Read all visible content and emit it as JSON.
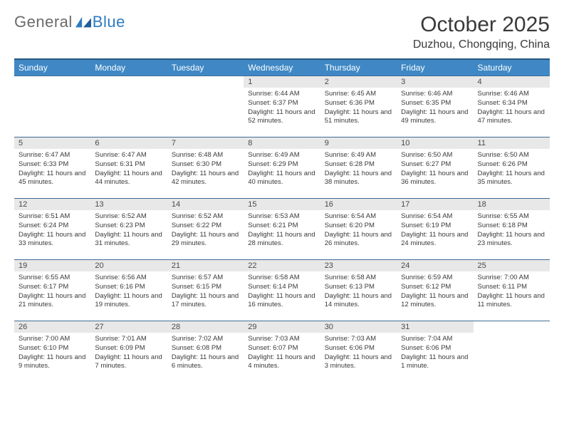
{
  "brand": {
    "word1": "General",
    "word2": "Blue"
  },
  "title": "October 2025",
  "location": "Duzhou, Chongqing, China",
  "colors": {
    "header_bg": "#3f88c5",
    "header_border_top": "#2a5880",
    "row_divider": "#3f6b94",
    "daynum_bg": "#e8e8e8",
    "text": "#3a3a3a",
    "brand_gray": "#6b6b6b",
    "brand_blue": "#2d7bc0"
  },
  "fonts": {
    "title_size_pt": 22,
    "location_size_pt": 12,
    "header_size_pt": 9,
    "daynum_size_pt": 8,
    "body_size_pt": 7
  },
  "day_headers": [
    "Sunday",
    "Monday",
    "Tuesday",
    "Wednesday",
    "Thursday",
    "Friday",
    "Saturday"
  ],
  "weeks": [
    [
      {
        "num": "",
        "sunrise": "",
        "sunset": "",
        "daylight": ""
      },
      {
        "num": "",
        "sunrise": "",
        "sunset": "",
        "daylight": ""
      },
      {
        "num": "",
        "sunrise": "",
        "sunset": "",
        "daylight": ""
      },
      {
        "num": "1",
        "sunrise": "Sunrise: 6:44 AM",
        "sunset": "Sunset: 6:37 PM",
        "daylight": "Daylight: 11 hours and 52 minutes."
      },
      {
        "num": "2",
        "sunrise": "Sunrise: 6:45 AM",
        "sunset": "Sunset: 6:36 PM",
        "daylight": "Daylight: 11 hours and 51 minutes."
      },
      {
        "num": "3",
        "sunrise": "Sunrise: 6:46 AM",
        "sunset": "Sunset: 6:35 PM",
        "daylight": "Daylight: 11 hours and 49 minutes."
      },
      {
        "num": "4",
        "sunrise": "Sunrise: 6:46 AM",
        "sunset": "Sunset: 6:34 PM",
        "daylight": "Daylight: 11 hours and 47 minutes."
      }
    ],
    [
      {
        "num": "5",
        "sunrise": "Sunrise: 6:47 AM",
        "sunset": "Sunset: 6:33 PM",
        "daylight": "Daylight: 11 hours and 45 minutes."
      },
      {
        "num": "6",
        "sunrise": "Sunrise: 6:47 AM",
        "sunset": "Sunset: 6:31 PM",
        "daylight": "Daylight: 11 hours and 44 minutes."
      },
      {
        "num": "7",
        "sunrise": "Sunrise: 6:48 AM",
        "sunset": "Sunset: 6:30 PM",
        "daylight": "Daylight: 11 hours and 42 minutes."
      },
      {
        "num": "8",
        "sunrise": "Sunrise: 6:49 AM",
        "sunset": "Sunset: 6:29 PM",
        "daylight": "Daylight: 11 hours and 40 minutes."
      },
      {
        "num": "9",
        "sunrise": "Sunrise: 6:49 AM",
        "sunset": "Sunset: 6:28 PM",
        "daylight": "Daylight: 11 hours and 38 minutes."
      },
      {
        "num": "10",
        "sunrise": "Sunrise: 6:50 AM",
        "sunset": "Sunset: 6:27 PM",
        "daylight": "Daylight: 11 hours and 36 minutes."
      },
      {
        "num": "11",
        "sunrise": "Sunrise: 6:50 AM",
        "sunset": "Sunset: 6:26 PM",
        "daylight": "Daylight: 11 hours and 35 minutes."
      }
    ],
    [
      {
        "num": "12",
        "sunrise": "Sunrise: 6:51 AM",
        "sunset": "Sunset: 6:24 PM",
        "daylight": "Daylight: 11 hours and 33 minutes."
      },
      {
        "num": "13",
        "sunrise": "Sunrise: 6:52 AM",
        "sunset": "Sunset: 6:23 PM",
        "daylight": "Daylight: 11 hours and 31 minutes."
      },
      {
        "num": "14",
        "sunrise": "Sunrise: 6:52 AM",
        "sunset": "Sunset: 6:22 PM",
        "daylight": "Daylight: 11 hours and 29 minutes."
      },
      {
        "num": "15",
        "sunrise": "Sunrise: 6:53 AM",
        "sunset": "Sunset: 6:21 PM",
        "daylight": "Daylight: 11 hours and 28 minutes."
      },
      {
        "num": "16",
        "sunrise": "Sunrise: 6:54 AM",
        "sunset": "Sunset: 6:20 PM",
        "daylight": "Daylight: 11 hours and 26 minutes."
      },
      {
        "num": "17",
        "sunrise": "Sunrise: 6:54 AM",
        "sunset": "Sunset: 6:19 PM",
        "daylight": "Daylight: 11 hours and 24 minutes."
      },
      {
        "num": "18",
        "sunrise": "Sunrise: 6:55 AM",
        "sunset": "Sunset: 6:18 PM",
        "daylight": "Daylight: 11 hours and 23 minutes."
      }
    ],
    [
      {
        "num": "19",
        "sunrise": "Sunrise: 6:55 AM",
        "sunset": "Sunset: 6:17 PM",
        "daylight": "Daylight: 11 hours and 21 minutes."
      },
      {
        "num": "20",
        "sunrise": "Sunrise: 6:56 AM",
        "sunset": "Sunset: 6:16 PM",
        "daylight": "Daylight: 11 hours and 19 minutes."
      },
      {
        "num": "21",
        "sunrise": "Sunrise: 6:57 AM",
        "sunset": "Sunset: 6:15 PM",
        "daylight": "Daylight: 11 hours and 17 minutes."
      },
      {
        "num": "22",
        "sunrise": "Sunrise: 6:58 AM",
        "sunset": "Sunset: 6:14 PM",
        "daylight": "Daylight: 11 hours and 16 minutes."
      },
      {
        "num": "23",
        "sunrise": "Sunrise: 6:58 AM",
        "sunset": "Sunset: 6:13 PM",
        "daylight": "Daylight: 11 hours and 14 minutes."
      },
      {
        "num": "24",
        "sunrise": "Sunrise: 6:59 AM",
        "sunset": "Sunset: 6:12 PM",
        "daylight": "Daylight: 11 hours and 12 minutes."
      },
      {
        "num": "25",
        "sunrise": "Sunrise: 7:00 AM",
        "sunset": "Sunset: 6:11 PM",
        "daylight": "Daylight: 11 hours and 11 minutes."
      }
    ],
    [
      {
        "num": "26",
        "sunrise": "Sunrise: 7:00 AM",
        "sunset": "Sunset: 6:10 PM",
        "daylight": "Daylight: 11 hours and 9 minutes."
      },
      {
        "num": "27",
        "sunrise": "Sunrise: 7:01 AM",
        "sunset": "Sunset: 6:09 PM",
        "daylight": "Daylight: 11 hours and 7 minutes."
      },
      {
        "num": "28",
        "sunrise": "Sunrise: 7:02 AM",
        "sunset": "Sunset: 6:08 PM",
        "daylight": "Daylight: 11 hours and 6 minutes."
      },
      {
        "num": "29",
        "sunrise": "Sunrise: 7:03 AM",
        "sunset": "Sunset: 6:07 PM",
        "daylight": "Daylight: 11 hours and 4 minutes."
      },
      {
        "num": "30",
        "sunrise": "Sunrise: 7:03 AM",
        "sunset": "Sunset: 6:06 PM",
        "daylight": "Daylight: 11 hours and 3 minutes."
      },
      {
        "num": "31",
        "sunrise": "Sunrise: 7:04 AM",
        "sunset": "Sunset: 6:06 PM",
        "daylight": "Daylight: 11 hours and 1 minute."
      },
      {
        "num": "",
        "sunrise": "",
        "sunset": "",
        "daylight": ""
      }
    ]
  ]
}
